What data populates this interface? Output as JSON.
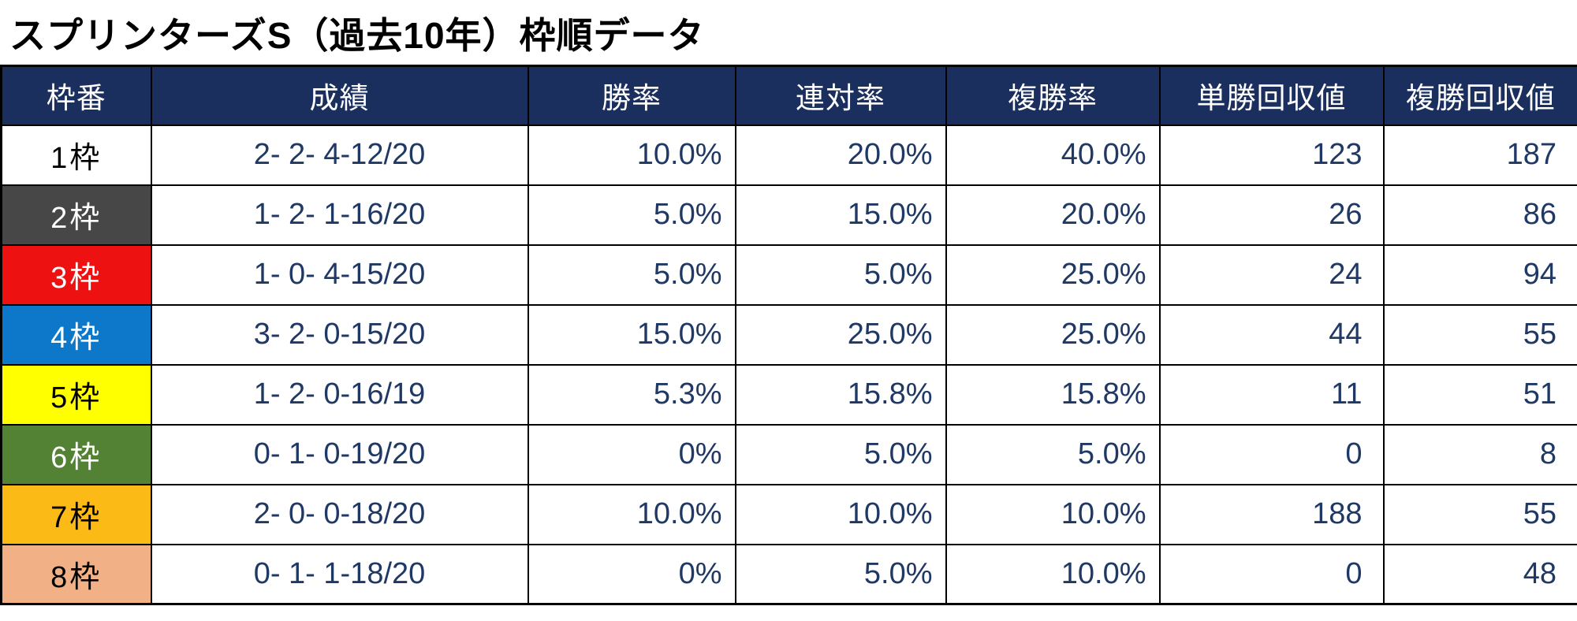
{
  "title": "スプリンターズS（過去10年）枠順データ",
  "colors": {
    "header_bg": "#1b2f5e",
    "header_text": "#ffffff",
    "cell_text": "#1f3864",
    "border": "#000000",
    "frame_colors": {
      "1": {
        "bg": "#ffffff",
        "fg": "#000000"
      },
      "2": {
        "bg": "#474747",
        "fg": "#ffffff"
      },
      "3": {
        "bg": "#ee1111",
        "fg": "#ffffff"
      },
      "4": {
        "bg": "#0d78c9",
        "fg": "#ffffff"
      },
      "5": {
        "bg": "#ffff00",
        "fg": "#000000"
      },
      "6": {
        "bg": "#548235",
        "fg": "#ffffff"
      },
      "7": {
        "bg": "#fbba15",
        "fg": "#000000"
      },
      "8": {
        "bg": "#f1b085",
        "fg": "#000000"
      }
    }
  },
  "chart_data": {
    "type": "table",
    "title": "スプリンターズS（過去10年）枠順データ",
    "columns": [
      "枠番",
      "成績",
      "勝率",
      "連対率",
      "複勝率",
      "単勝回収値",
      "複勝回収値"
    ],
    "rows": [
      {
        "frame": "1枠",
        "record": "2- 2- 4-12/20",
        "win_rate": "10.0%",
        "quinella_rate": "20.0%",
        "show_rate": "40.0%",
        "win_payout": "123",
        "show_payout": "187",
        "bg": "#ffffff",
        "fg": "#000000"
      },
      {
        "frame": "2枠",
        "record": "1- 2- 1-16/20",
        "win_rate": "5.0%",
        "quinella_rate": "15.0%",
        "show_rate": "20.0%",
        "win_payout": "26",
        "show_payout": "86",
        "bg": "#474747",
        "fg": "#ffffff"
      },
      {
        "frame": "3枠",
        "record": "1- 0- 4-15/20",
        "win_rate": "5.0%",
        "quinella_rate": "5.0%",
        "show_rate": "25.0%",
        "win_payout": "24",
        "show_payout": "94",
        "bg": "#ee1111",
        "fg": "#ffffff"
      },
      {
        "frame": "4枠",
        "record": "3- 2- 0-15/20",
        "win_rate": "15.0%",
        "quinella_rate": "25.0%",
        "show_rate": "25.0%",
        "win_payout": "44",
        "show_payout": "55",
        "bg": "#0d78c9",
        "fg": "#ffffff"
      },
      {
        "frame": "5枠",
        "record": "1- 2- 0-16/19",
        "win_rate": "5.3%",
        "quinella_rate": "15.8%",
        "show_rate": "15.8%",
        "win_payout": "11",
        "show_payout": "51",
        "bg": "#ffff00",
        "fg": "#000000"
      },
      {
        "frame": "6枠",
        "record": "0- 1- 0-19/20",
        "win_rate": "0%",
        "quinella_rate": "5.0%",
        "show_rate": "5.0%",
        "win_payout": "0",
        "show_payout": "8",
        "bg": "#548235",
        "fg": "#ffffff"
      },
      {
        "frame": "7枠",
        "record": "2- 0- 0-18/20",
        "win_rate": "10.0%",
        "quinella_rate": "10.0%",
        "show_rate": "10.0%",
        "win_payout": "188",
        "show_payout": "55",
        "bg": "#fbba15",
        "fg": "#000000"
      },
      {
        "frame": "8枠",
        "record": "0- 1- 1-18/20",
        "win_rate": "0%",
        "quinella_rate": "5.0%",
        "show_rate": "10.0%",
        "win_payout": "0",
        "show_payout": "48",
        "bg": "#f1b085",
        "fg": "#000000"
      }
    ]
  }
}
